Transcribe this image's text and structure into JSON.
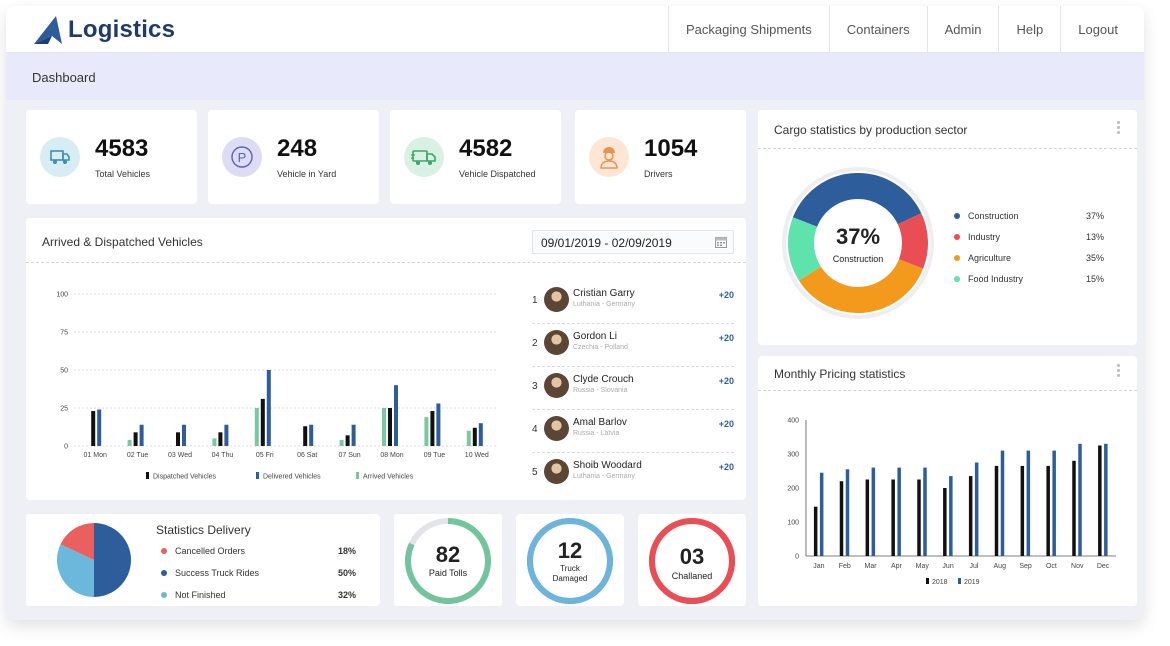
{
  "brand": {
    "name": "Logistics"
  },
  "nav": {
    "items": [
      "Packaging Shipments",
      "Containers",
      "Admin",
      "Help",
      "Logout"
    ]
  },
  "breadcrumb": "Dashboard",
  "kpis": [
    {
      "value": "4583",
      "label": "Total Vehicles",
      "icon": "truck-icon",
      "bg": "#d7ecf3",
      "color": "#3d8fb4"
    },
    {
      "value": "248",
      "label": "Vehicle in Yard",
      "icon": "parking-icon",
      "bg": "#dcdcf5",
      "color": "#5d62b5"
    },
    {
      "value": "4582",
      "label": "Vehicle Dispatched",
      "icon": "delivery-truck-icon",
      "bg": "#d9f1e3",
      "color": "#3aa66a"
    },
    {
      "value": "1054",
      "label": "Drivers",
      "icon": "driver-icon",
      "bg": "#fde6d4",
      "color": "#e9934f"
    }
  ],
  "vehicles": {
    "title": "Arrived & Dispatched Vehicles",
    "date_range": "09/01/2019 - 02/09/2019",
    "legend": [
      "Dispatched Vehicles",
      "Delivered Vehicles",
      "Arrived Vehicles"
    ]
  },
  "drivers": [
    {
      "rank": "1",
      "name": "Cristian Garry",
      "location": "Luthania - Germany",
      "score": "+20"
    },
    {
      "rank": "2",
      "name": "Gordon Li",
      "location": "Czechia - Polland",
      "score": "+20"
    },
    {
      "rank": "3",
      "name": "Clyde Crouch",
      "location": "Russia - Slovania",
      "score": "+20"
    },
    {
      "rank": "4",
      "name": "Amal Barlov",
      "location": "Russia - Latvia",
      "score": "+20"
    },
    {
      "rank": "5",
      "name": "Shoib Woodard",
      "location": "Luthania - Germany",
      "score": "+20"
    }
  ],
  "statistics_delivery": {
    "title": "Statistics Delivery",
    "rows": [
      {
        "label": "Cancelled Orders",
        "value": "18%",
        "color": "#e9605f"
      },
      {
        "label": "Success Truck Rides",
        "value": "50%",
        "color": "#2d5d9a"
      },
      {
        "label": "Not Finished",
        "value": "32%",
        "color": "#6cb8dd"
      }
    ]
  },
  "rings": [
    {
      "value": "82",
      "label": "Paid Tolls",
      "color": "#72c49c",
      "track": "#e2e4e8",
      "fraction": 0.82
    },
    {
      "value": "12",
      "label": "Truck Damaged",
      "color": "#6cb4dc",
      "track": "#6cb4dc",
      "fraction": 1
    },
    {
      "value": "03",
      "label": "Challaned",
      "color": "#ea4e55",
      "track": "#ea4e55",
      "fraction": 1
    }
  ],
  "cargo": {
    "title": "Cargo statistics by production sector",
    "center_value": "37%",
    "center_label": "Construction"
  },
  "monthly": {
    "title": "Monthly Pricing statistics"
  },
  "chart_data": [
    {
      "type": "bar",
      "categories": [
        "01 Mon",
        "02 Tue",
        "03 Wed",
        "04 Thu",
        "05 Fri",
        "06 Sat",
        "07 Sun",
        "08 Mon",
        "09 Tue",
        "10 Wed"
      ],
      "series": [
        {
          "name": "Arrived Vehicles",
          "color": "#79c8a4",
          "values": [
            0,
            4,
            0,
            5,
            25,
            0,
            4,
            25,
            19,
            10
          ]
        },
        {
          "name": "Dispatched Vehicles",
          "color": "#111111",
          "values": [
            23,
            9,
            9,
            9,
            31,
            13,
            7,
            25,
            23,
            12
          ]
        },
        {
          "name": "Delivered Vehicles",
          "color": "#2d5d9a",
          "values": [
            24,
            14,
            14,
            14,
            50,
            14,
            14,
            40,
            28,
            15
          ]
        }
      ],
      "yticks": [
        0,
        25,
        50,
        75,
        100
      ],
      "ylim": [
        0,
        100
      ],
      "grid": true,
      "legend": "bottom"
    },
    {
      "type": "pie",
      "series": [
        {
          "name": "Construction",
          "value": 37,
          "label": "37%",
          "color": "#2d5d9a"
        },
        {
          "name": "Industry",
          "value": 13,
          "label": "13%",
          "color": "#ea4e55"
        },
        {
          "name": "Agriculture",
          "value": 35,
          "label": "35%",
          "color": "#f39a1c"
        },
        {
          "name": "Food Industry",
          "value": 15,
          "label": "15%",
          "color": "#5fe3ad"
        }
      ],
      "legend": "right"
    },
    {
      "type": "bar",
      "categories": [
        "Jan",
        "Feb",
        "Mar",
        "Apr",
        "May",
        "Jun",
        "Jul",
        "Aug",
        "Sep",
        "Oct",
        "Nov",
        "Dec"
      ],
      "series": [
        {
          "name": "2018",
          "color": "#111111",
          "values": [
            145,
            220,
            225,
            225,
            225,
            200,
            235,
            265,
            265,
            265,
            280,
            325
          ]
        },
        {
          "name": "2019",
          "color": "#2d5d9a",
          "values": [
            245,
            255,
            260,
            260,
            260,
            235,
            275,
            310,
            310,
            310,
            330,
            330
          ]
        }
      ],
      "yticks": [
        0,
        100,
        200,
        300,
        400
      ],
      "ylim": [
        0,
        400
      ],
      "grid": false,
      "legend": "bottom"
    },
    {
      "type": "pie",
      "series": [
        {
          "name": "Cancelled Orders",
          "value": 18,
          "color": "#e9605f"
        },
        {
          "name": "Success Truck Rides",
          "value": 50,
          "color": "#2d5d9a"
        },
        {
          "name": "Not Finished",
          "value": 32,
          "color": "#6cb8dd"
        }
      ]
    }
  ]
}
